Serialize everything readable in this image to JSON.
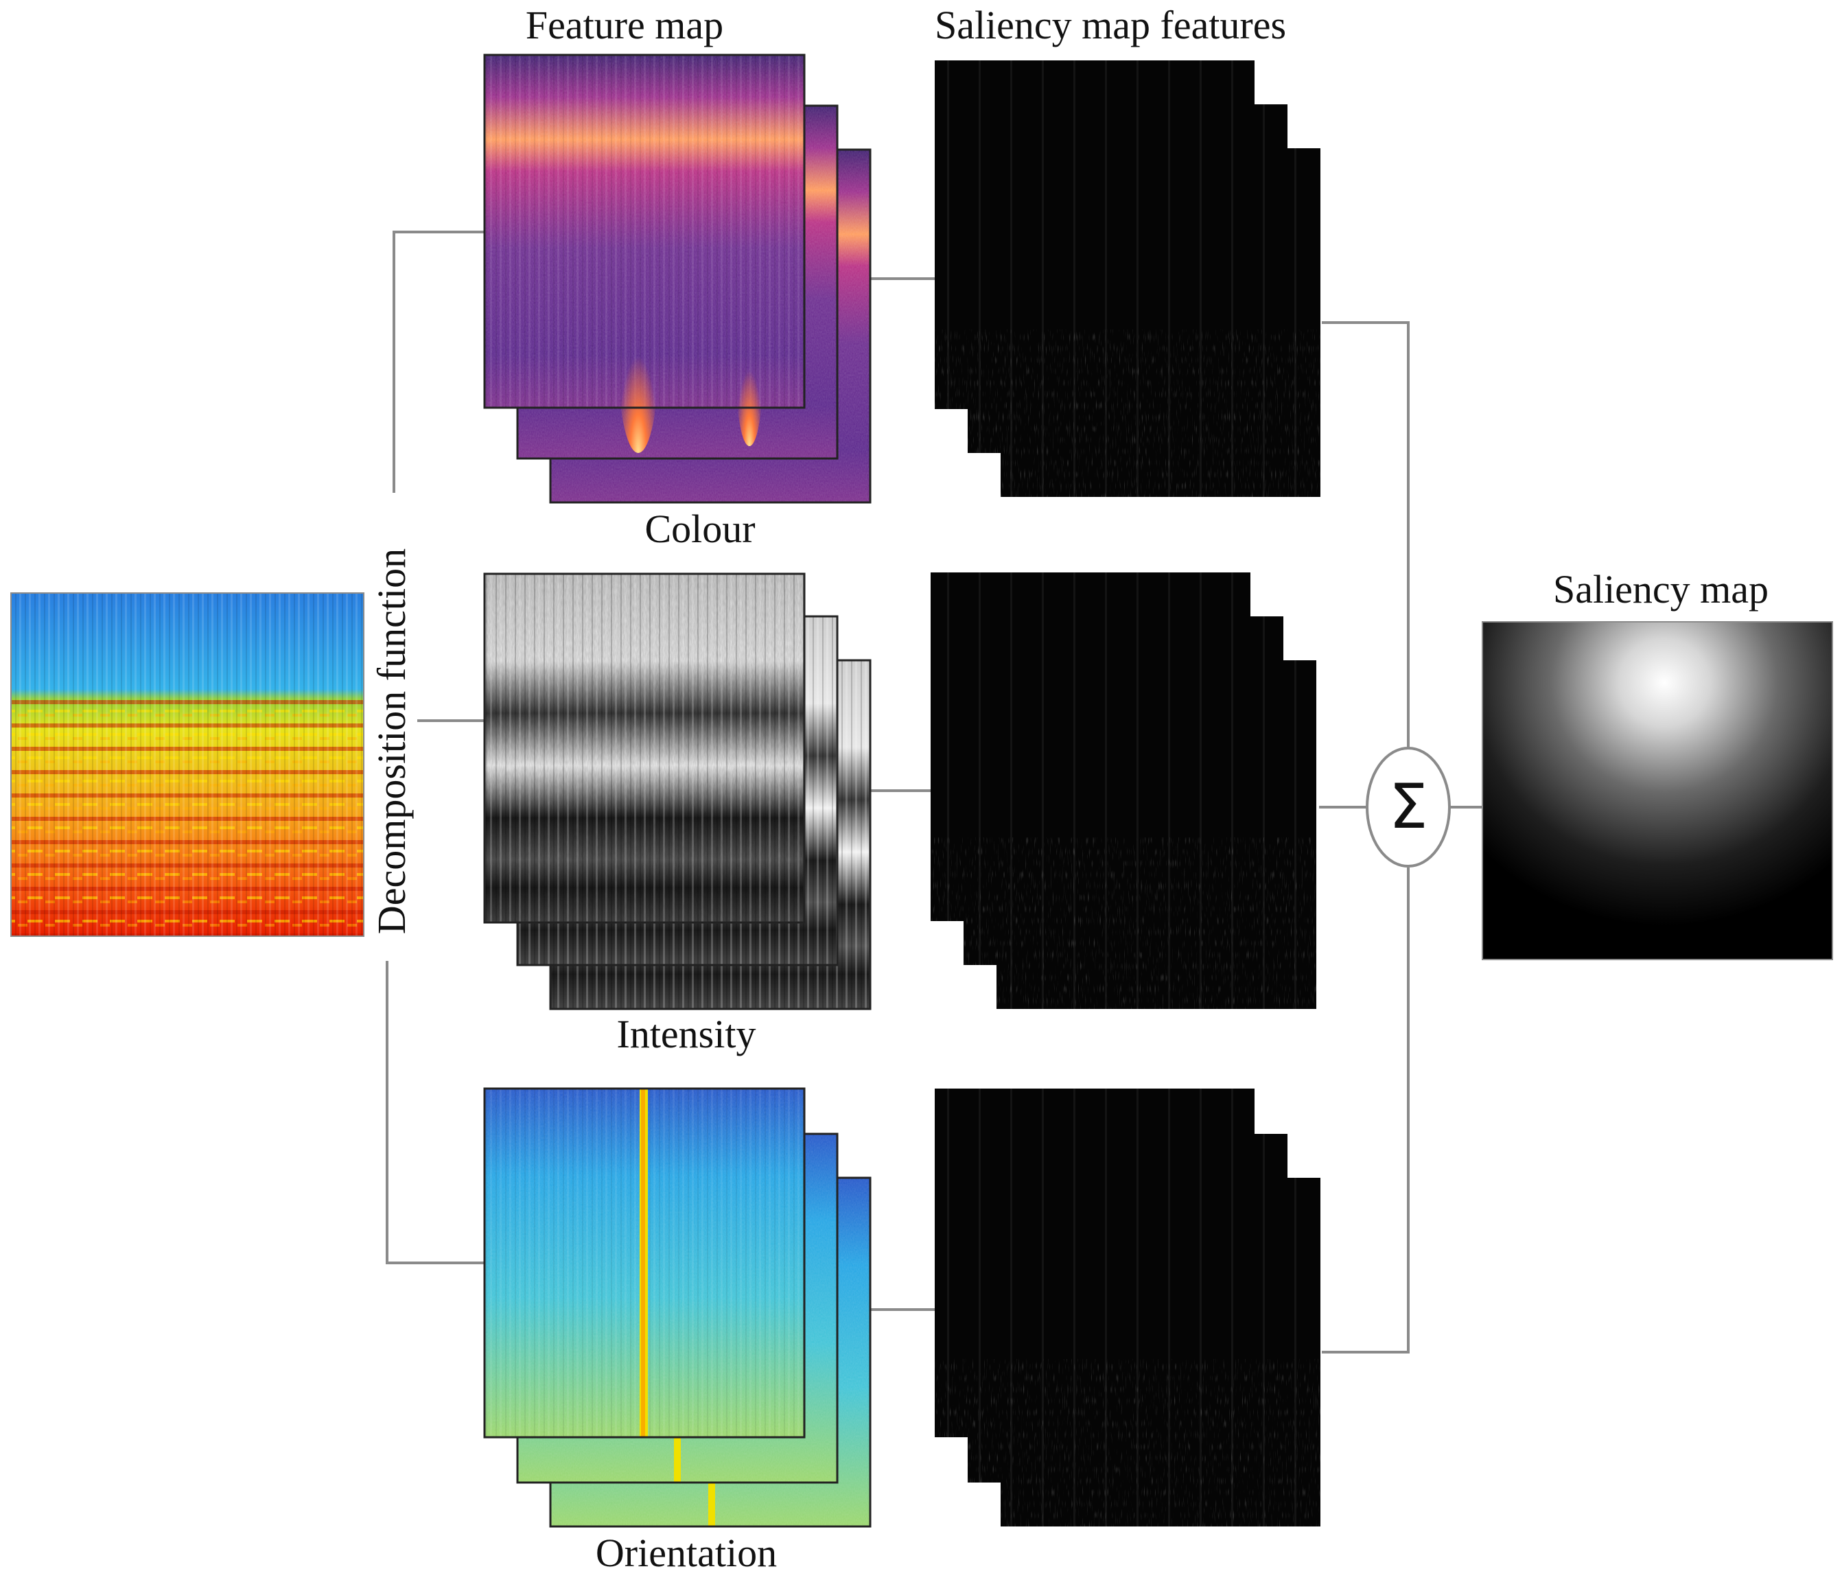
{
  "labels": {
    "feature_map": "Feature map",
    "saliency_map_features": "Saliency map features",
    "colour": "Colour",
    "intensity": "Intensity",
    "orientation": "Orientation",
    "decomposition_function": "Decomposition function",
    "saliency_map": "Saliency map",
    "sum_symbol": "Σ"
  },
  "colors": {
    "connector": "#8a8a8a",
    "colour_map_base": "#3a1d78",
    "colour_map_band": "#ff8a3c",
    "colour_map_peak": "#ffd27a",
    "intensity_light": "#e6e6e6",
    "intensity_dark": "#1a1a1a",
    "orientation_top": "#1e6fd6",
    "orientation_mid": "#27b6e6",
    "orientation_bottom": "#8fd07a",
    "orientation_line": "#f0e000",
    "spectrogram_top": "#2a9fe8",
    "spectrogram_mid": "#e8e000",
    "spectrogram_bottom": "#ff3a00",
    "saliency_feature": "#050505",
    "saliency_glow": "#ffffff"
  },
  "nodes": [
    {
      "id": "input",
      "label": "Input spectrogram"
    },
    {
      "id": "colour",
      "label": "Colour"
    },
    {
      "id": "intensity",
      "label": "Intensity"
    },
    {
      "id": "orientation",
      "label": "Orientation"
    },
    {
      "id": "sum",
      "label": "Σ"
    },
    {
      "id": "saliency",
      "label": "Saliency map"
    }
  ]
}
